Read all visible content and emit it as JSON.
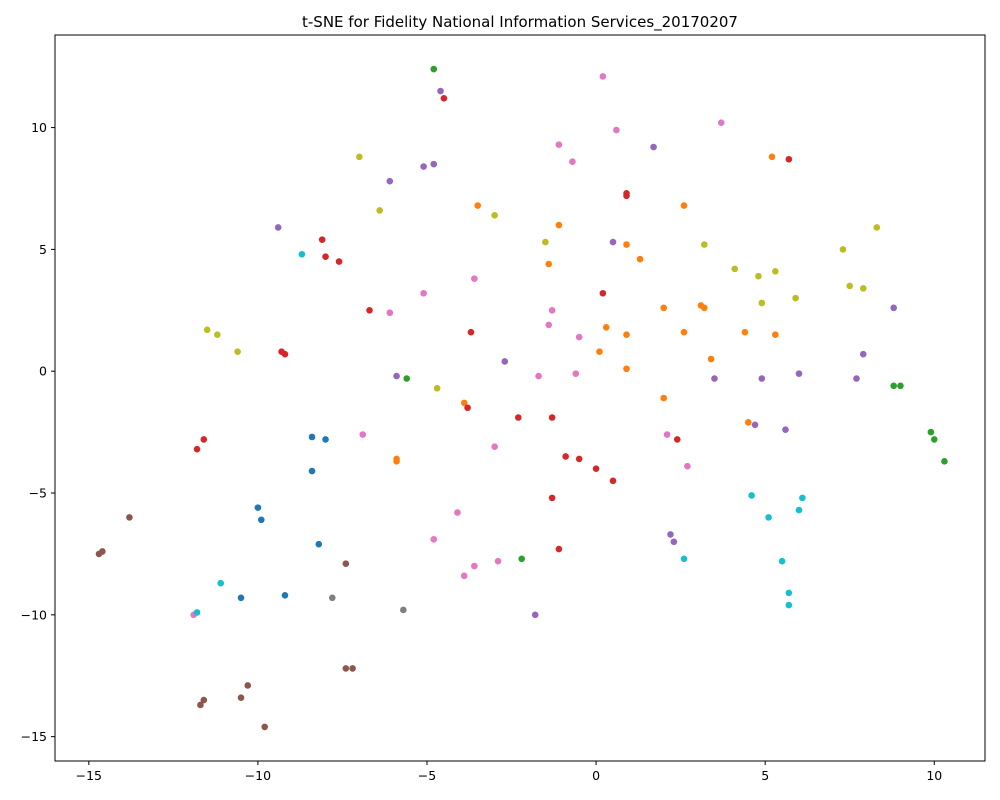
{
  "chart_data": {
    "type": "scatter",
    "title": "t-SNE for Fidelity National Information Services_20170207",
    "xlabel": "",
    "ylabel": "",
    "xlim": [
      -16.0,
      11.5
    ],
    "ylim": [
      -16.0,
      13.8
    ],
    "xticks": [
      -15,
      -10,
      -5,
      0,
      5,
      10
    ],
    "yticks": [
      -15,
      -10,
      -5,
      0,
      5,
      10
    ],
    "xtick_labels": [
      "−15",
      "−10",
      "−5",
      "0",
      "5",
      "10"
    ],
    "ytick_labels": [
      "−15",
      "−10",
      "−5",
      "0",
      "5",
      "10"
    ],
    "grid": false,
    "legend": "none",
    "series": [
      {
        "color": "#1f77b4",
        "points": [
          [
            -8.4,
            -2.7
          ],
          [
            -8.0,
            -2.8
          ],
          [
            -8.4,
            -4.1
          ],
          [
            -10.0,
            -5.6
          ],
          [
            -9.9,
            -6.1
          ],
          [
            -8.2,
            -7.1
          ],
          [
            -10.5,
            -9.3
          ],
          [
            -9.2,
            -9.2
          ]
        ]
      },
      {
        "color": "#ff7f0e",
        "points": [
          [
            -3.5,
            6.8
          ],
          [
            -1.1,
            6.0
          ],
          [
            -1.4,
            4.4
          ],
          [
            0.9,
            5.2
          ],
          [
            1.3,
            4.6
          ],
          [
            2.6,
            6.8
          ],
          [
            5.2,
            8.8
          ],
          [
            0.3,
            1.8
          ],
          [
            0.9,
            1.5
          ],
          [
            2.0,
            2.6
          ],
          [
            3.1,
            2.7
          ],
          [
            3.2,
            2.6
          ],
          [
            2.6,
            1.6
          ],
          [
            4.4,
            1.6
          ],
          [
            5.3,
            1.5
          ],
          [
            3.4,
            0.5
          ],
          [
            0.1,
            0.8
          ],
          [
            0.9,
            0.1
          ],
          [
            2.0,
            -1.1
          ],
          [
            -3.9,
            -1.3
          ],
          [
            -5.9,
            -3.6
          ],
          [
            -5.9,
            -3.7
          ],
          [
            4.5,
            -2.1
          ]
        ]
      },
      {
        "color": "#2ca02c",
        "points": [
          [
            -4.8,
            12.4
          ],
          [
            -5.6,
            -0.3
          ],
          [
            8.8,
            -0.6
          ],
          [
            9.0,
            -0.6
          ],
          [
            9.9,
            -2.5
          ],
          [
            10.0,
            -2.8
          ],
          [
            10.3,
            -3.7
          ],
          [
            -2.2,
            -7.7
          ]
        ]
      },
      {
        "color": "#d62728",
        "points": [
          [
            -4.5,
            11.2
          ],
          [
            5.7,
            8.7
          ],
          [
            0.9,
            7.3
          ],
          [
            0.9,
            7.2
          ],
          [
            -8.1,
            5.4
          ],
          [
            -8.0,
            4.7
          ],
          [
            -7.6,
            4.5
          ],
          [
            -6.7,
            2.5
          ],
          [
            -3.7,
            1.6
          ],
          [
            0.2,
            3.2
          ],
          [
            -9.3,
            0.8
          ],
          [
            -9.2,
            0.7
          ],
          [
            -11.6,
            -2.8
          ],
          [
            -11.8,
            -3.2
          ],
          [
            -3.8,
            -1.5
          ],
          [
            -2.3,
            -1.9
          ],
          [
            -1.3,
            -1.9
          ],
          [
            -0.9,
            -3.5
          ],
          [
            -0.5,
            -3.6
          ],
          [
            0.0,
            -4.0
          ],
          [
            0.5,
            -4.5
          ],
          [
            -1.3,
            -5.2
          ],
          [
            -1.1,
            -7.3
          ],
          [
            2.4,
            -2.8
          ]
        ]
      },
      {
        "color": "#9467bd",
        "points": [
          [
            -4.6,
            11.5
          ],
          [
            1.7,
            9.2
          ],
          [
            -6.1,
            7.8
          ],
          [
            -5.1,
            8.4
          ],
          [
            -4.8,
            8.5
          ],
          [
            -9.4,
            5.9
          ],
          [
            0.5,
            5.3
          ],
          [
            8.8,
            2.6
          ],
          [
            7.9,
            0.7
          ],
          [
            -2.7,
            0.4
          ],
          [
            -5.9,
            -0.2
          ],
          [
            3.5,
            -0.3
          ],
          [
            4.9,
            -0.3
          ],
          [
            6.0,
            -0.1
          ],
          [
            7.7,
            -0.3
          ],
          [
            4.7,
            -2.2
          ],
          [
            5.6,
            -2.4
          ],
          [
            2.2,
            -6.7
          ],
          [
            2.3,
            -7.0
          ],
          [
            -1.8,
            -10.0
          ]
        ]
      },
      {
        "color": "#8c564b",
        "points": [
          [
            -13.8,
            -6.0
          ],
          [
            -14.6,
            -7.4
          ],
          [
            -14.7,
            -7.5
          ],
          [
            -7.4,
            -7.9
          ],
          [
            -7.4,
            -12.2
          ],
          [
            -7.2,
            -12.2
          ],
          [
            -10.3,
            -12.9
          ],
          [
            -10.5,
            -13.4
          ],
          [
            -11.6,
            -13.5
          ],
          [
            -11.7,
            -13.7
          ],
          [
            -9.8,
            -14.6
          ]
        ]
      },
      {
        "color": "#e377c2",
        "points": [
          [
            0.2,
            12.1
          ],
          [
            3.7,
            10.2
          ],
          [
            0.6,
            9.9
          ],
          [
            -1.1,
            9.3
          ],
          [
            -0.7,
            8.6
          ],
          [
            -3.6,
            3.8
          ],
          [
            -5.1,
            3.2
          ],
          [
            -6.1,
            2.4
          ],
          [
            -1.3,
            2.5
          ],
          [
            -1.4,
            1.9
          ],
          [
            -0.5,
            1.4
          ],
          [
            -1.7,
            -0.2
          ],
          [
            -0.6,
            -0.1
          ],
          [
            -6.9,
            -2.6
          ],
          [
            -3.0,
            -3.1
          ],
          [
            2.1,
            -2.6
          ],
          [
            2.7,
            -3.9
          ],
          [
            -4.1,
            -5.8
          ],
          [
            -4.8,
            -6.9
          ],
          [
            -3.6,
            -8.0
          ],
          [
            -3.9,
            -8.4
          ],
          [
            -2.9,
            -7.8
          ],
          [
            -11.9,
            -10.0
          ]
        ]
      },
      {
        "color": "#7f7f7f",
        "points": [
          [
            -7.8,
            -9.3
          ],
          [
            -5.7,
            -9.8
          ]
        ]
      },
      {
        "color": "#bcbd22",
        "points": [
          [
            -7.0,
            8.8
          ],
          [
            -6.4,
            6.6
          ],
          [
            -3.0,
            6.4
          ],
          [
            -1.5,
            5.3
          ],
          [
            3.2,
            5.2
          ],
          [
            4.1,
            4.2
          ],
          [
            4.8,
            3.9
          ],
          [
            5.3,
            4.1
          ],
          [
            7.3,
            5.0
          ],
          [
            8.3,
            5.9
          ],
          [
            7.5,
            3.5
          ],
          [
            7.9,
            3.4
          ],
          [
            4.9,
            2.8
          ],
          [
            5.9,
            3.0
          ],
          [
            -11.5,
            1.7
          ],
          [
            -11.2,
            1.5
          ],
          [
            -10.6,
            0.8
          ],
          [
            -4.7,
            -0.7
          ]
        ]
      },
      {
        "color": "#17becf",
        "points": [
          [
            -8.7,
            4.8
          ],
          [
            -11.1,
            -8.7
          ],
          [
            -11.8,
            -9.9
          ],
          [
            4.6,
            -5.1
          ],
          [
            5.1,
            -6.0
          ],
          [
            6.0,
            -5.7
          ],
          [
            6.1,
            -5.2
          ],
          [
            2.6,
            -7.7
          ],
          [
            5.5,
            -7.8
          ],
          [
            5.7,
            -9.1
          ],
          [
            5.7,
            -9.6
          ]
        ]
      }
    ]
  }
}
